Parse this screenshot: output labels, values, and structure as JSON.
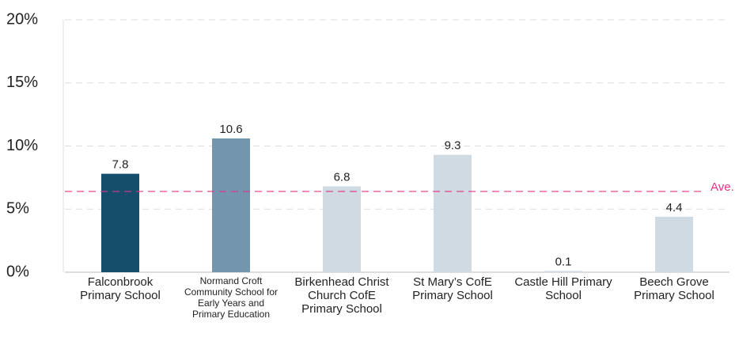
{
  "chart_data": {
    "type": "bar",
    "categories": [
      "Falconbrook Primary School",
      "Normand Croft Community School for Early Years and Primary Education",
      "Birkenhead Christ Church CofE Primary School",
      "St Mary’s CofE Primary School",
      "Castle Hill Primary School",
      "Beech Grove Primary School"
    ],
    "values": [
      7.8,
      10.6,
      6.8,
      9.3,
      0.1,
      4.4
    ],
    "colors": [
      "#154e6b",
      "#7496ad",
      "#cfdae2",
      "#cfdae2",
      "#cfdae2",
      "#cfdae2"
    ],
    "ylim": [
      0,
      20
    ],
    "yticks": [
      {
        "value": 0,
        "label": "0%"
      },
      {
        "value": 5,
        "label": "5%"
      },
      {
        "value": 10,
        "label": "10%"
      },
      {
        "value": 15,
        "label": "15%"
      },
      {
        "value": 20,
        "label": "20%"
      }
    ],
    "grid": true,
    "average": {
      "value": 6.4,
      "label": "Ave.",
      "color": "#e0338a"
    }
  }
}
